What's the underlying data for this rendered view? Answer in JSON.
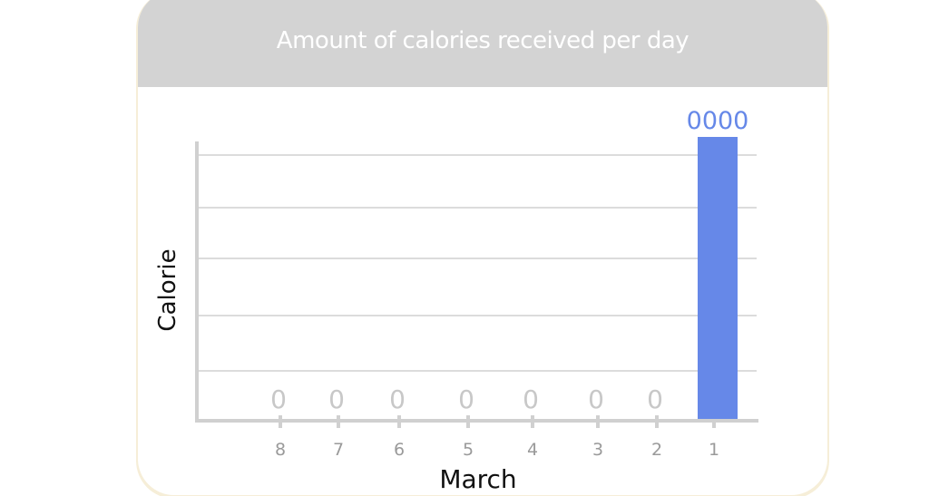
{
  "header": {
    "title": "Amount of calories received per day"
  },
  "colors": {
    "header_bg": "#d3d3d3",
    "bar": "#6688e8",
    "bar_label": "#6688e8",
    "zero_label": "#c8c8c8",
    "grid": "#dcdcdc",
    "axis": "#d0d0d0",
    "tick_label": "#9a9a9a",
    "axis_title": "#111111"
  },
  "chart_data": {
    "type": "bar",
    "title": "Amount of calories received per day",
    "xlabel": "March",
    "ylabel": "Calorie",
    "categories": [
      "8",
      "7",
      "6",
      "5",
      "4",
      "3",
      "2",
      "1"
    ],
    "values": [
      0,
      0,
      0,
      0,
      0,
      0,
      0,
      0
    ],
    "data_labels": [
      "0",
      "0",
      "0",
      "0",
      "0",
      "0",
      "0",
      "0000"
    ],
    "ylim": [
      0,
      1
    ],
    "grid": true,
    "legend": "none"
  }
}
